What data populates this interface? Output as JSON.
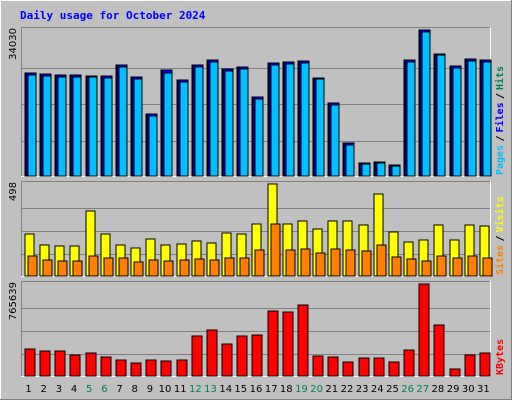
{
  "chart_data": {
    "type": "bar",
    "title": "Daily usage for October 2024",
    "x": [
      "1",
      "2",
      "3",
      "4",
      "5",
      "6",
      "7",
      "8",
      "9",
      "10",
      "11",
      "12",
      "13",
      "14",
      "15",
      "16",
      "17",
      "18",
      "19",
      "20",
      "21",
      "22",
      "23",
      "24",
      "25",
      "26",
      "27",
      "28",
      "29",
      "30",
      "31"
    ],
    "weekend_days": [
      "5",
      "6",
      "12",
      "13",
      "19",
      "20",
      "26",
      "27"
    ],
    "colors": {
      "hits": "#00805c",
      "files": "#0000ff",
      "pages": "#00c0ff",
      "visits": "#ffff00",
      "sites": "#ff8000",
      "kbytes": "#ff0000",
      "title": "#0000ff",
      "weekend": "#00805c",
      "weekday": "#000000"
    },
    "panels": [
      {
        "id": "hits",
        "ymax_label": "34030",
        "ylim": [
          0,
          34030
        ],
        "legend": [
          {
            "key": "pages",
            "label": "Pages"
          },
          {
            "key": "files",
            "label": "Files"
          },
          {
            "key": "hits",
            "label": "Hits"
          }
        ],
        "series": [
          {
            "key": "hits",
            "name": "Hits",
            "values": [
              24100,
              23700,
              23500,
              23500,
              23400,
              23200,
              25800,
              23100,
              14500,
              24600,
              22300,
              25900,
              27000,
              24900,
              25400,
              18400,
              26300,
              26600,
              26700,
              22900,
              16900,
              7600,
              3100,
              3300,
              2600,
              27000,
              34030,
              28500,
              25600,
              27300,
              27000
            ]
          },
          {
            "key": "files",
            "name": "Files",
            "values": [
              24100,
              23700,
              23500,
              23500,
              23400,
              23200,
              25800,
              23100,
              14500,
              24600,
              22300,
              25900,
              27000,
              24900,
              25400,
              18400,
              26300,
              26600,
              26700,
              22900,
              16900,
              7600,
              3100,
              3300,
              2600,
              27000,
              34030,
              28500,
              25600,
              27300,
              27000
            ]
          },
          {
            "key": "pages",
            "name": "Pages",
            "values": [
              23600,
              23200,
              23000,
              23000,
              23000,
              22800,
              25300,
              22700,
              14000,
              24100,
              21900,
              25500,
              26600,
              24500,
              25000,
              18000,
              25900,
              26200,
              26300,
              22500,
              16500,
              7200,
              2800,
              3000,
              2400,
              26600,
              33600,
              28100,
              25200,
              26900,
              26600
            ]
          }
        ]
      },
      {
        "id": "visits",
        "ymax_label": "498",
        "ylim": [
          0,
          498
        ],
        "legend": [
          {
            "key": "sites",
            "label": "Sites"
          },
          {
            "key": "visits",
            "label": "Visits"
          }
        ],
        "series": [
          {
            "key": "visits",
            "name": "Visits",
            "values": [
              230,
              170,
              160,
              160,
              350,
              230,
              170,
              150,
              200,
              170,
              175,
              190,
              180,
              235,
              230,
              280,
              498,
              280,
              300,
              255,
              300,
              300,
              275,
              445,
              240,
              185,
              195,
              275,
              195,
              275,
              270
            ]
          },
          {
            "key": "sites",
            "name": "Sites",
            "values": [
              110,
              85,
              80,
              80,
              110,
              95,
              100,
              75,
              85,
              80,
              85,
              90,
              85,
              100,
              100,
              140,
              280,
              140,
              145,
              125,
              145,
              140,
              135,
              170,
              105,
              90,
              80,
              110,
              95,
              110,
              100
            ]
          }
        ]
      },
      {
        "id": "kbytes",
        "ymax_label": "765639",
        "ylim": [
          0,
          765639
        ],
        "legend": [
          {
            "key": "kbytes",
            "label": "KBytes"
          }
        ],
        "series": [
          {
            "key": "kbytes",
            "name": "KBytes",
            "values": [
              225000,
              210000,
              210000,
              175000,
              190000,
              160000,
              130000,
              105000,
              135000,
              125000,
              130000,
              335000,
              385000,
              270000,
              335000,
              340000,
              545000,
              535000,
              595000,
              165000,
              155000,
              120000,
              150000,
              150000,
              115000,
              215000,
              765639,
              425000,
              55000,
              175000,
              195000
            ]
          }
        ]
      }
    ]
  }
}
